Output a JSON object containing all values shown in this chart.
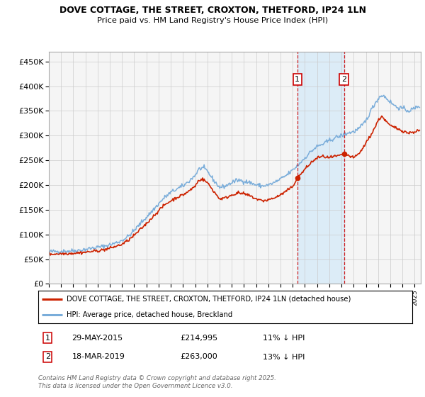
{
  "title": "DOVE COTTAGE, THE STREET, CROXTON, THETFORD, IP24 1LN",
  "subtitle": "Price paid vs. HM Land Registry's House Price Index (HPI)",
  "ylim": [
    0,
    470000
  ],
  "yticks": [
    0,
    50000,
    100000,
    150000,
    200000,
    250000,
    300000,
    350000,
    400000,
    450000
  ],
  "ytick_labels": [
    "£0",
    "£50K",
    "£100K",
    "£150K",
    "£200K",
    "£250K",
    "£300K",
    "£350K",
    "£400K",
    "£450K"
  ],
  "xlim_start": 1995.0,
  "xlim_end": 2025.5,
  "legend_line1": "DOVE COTTAGE, THE STREET, CROXTON, THETFORD, IP24 1LN (detached house)",
  "legend_line2": "HPI: Average price, detached house, Breckland",
  "sale1_date": "29-MAY-2015",
  "sale1_price": "£214,995",
  "sale1_hpi": "11% ↓ HPI",
  "sale1_x": 2015.38,
  "sale1_y": 214995,
  "sale2_date": "18-MAR-2019",
  "sale2_price": "£263,000",
  "sale2_hpi": "13% ↓ HPI",
  "sale2_x": 2019.21,
  "sale2_y": 263000,
  "footer": "Contains HM Land Registry data © Crown copyright and database right 2025.\nThis data is licensed under the Open Government Licence v3.0.",
  "line_color_red": "#cc2200",
  "line_color_blue": "#7aadda",
  "shade_color": "#d6eaf8",
  "grid_color": "#cccccc",
  "background_color": "#f5f5f5",
  "hpi_anchors": [
    [
      1995.0,
      65000
    ],
    [
      1995.5,
      65500
    ],
    [
      1996.0,
      66000
    ],
    [
      1996.5,
      66500
    ],
    [
      1997.0,
      67000
    ],
    [
      1997.5,
      68000
    ],
    [
      1998.0,
      70000
    ],
    [
      1998.5,
      72000
    ],
    [
      1999.0,
      74000
    ],
    [
      1999.5,
      76000
    ],
    [
      2000.0,
      79000
    ],
    [
      2000.5,
      83000
    ],
    [
      2001.0,
      88000
    ],
    [
      2001.5,
      96000
    ],
    [
      2002.0,
      108000
    ],
    [
      2002.5,
      122000
    ],
    [
      2003.0,
      135000
    ],
    [
      2003.5,
      148000
    ],
    [
      2004.0,
      162000
    ],
    [
      2004.5,
      175000
    ],
    [
      2005.0,
      185000
    ],
    [
      2005.5,
      192000
    ],
    [
      2006.0,
      198000
    ],
    [
      2006.5,
      208000
    ],
    [
      2007.0,
      220000
    ],
    [
      2007.3,
      232000
    ],
    [
      2007.6,
      235000
    ],
    [
      2008.0,
      228000
    ],
    [
      2008.5,
      210000
    ],
    [
      2009.0,
      195000
    ],
    [
      2009.5,
      198000
    ],
    [
      2010.0,
      205000
    ],
    [
      2010.5,
      210000
    ],
    [
      2011.0,
      208000
    ],
    [
      2011.5,
      205000
    ],
    [
      2012.0,
      200000
    ],
    [
      2012.5,
      198000
    ],
    [
      2013.0,
      200000
    ],
    [
      2013.5,
      205000
    ],
    [
      2014.0,
      212000
    ],
    [
      2014.5,
      220000
    ],
    [
      2015.0,
      230000
    ],
    [
      2015.5,
      242000
    ],
    [
      2016.0,
      255000
    ],
    [
      2016.5,
      268000
    ],
    [
      2017.0,
      278000
    ],
    [
      2017.5,
      283000
    ],
    [
      2018.0,
      290000
    ],
    [
      2018.5,
      296000
    ],
    [
      2019.0,
      300000
    ],
    [
      2019.5,
      305000
    ],
    [
      2020.0,
      308000
    ],
    [
      2020.5,
      315000
    ],
    [
      2021.0,
      330000
    ],
    [
      2021.5,
      355000
    ],
    [
      2022.0,
      375000
    ],
    [
      2022.3,
      382000
    ],
    [
      2022.6,
      378000
    ],
    [
      2023.0,
      368000
    ],
    [
      2023.5,
      358000
    ],
    [
      2024.0,
      355000
    ],
    [
      2024.5,
      350000
    ],
    [
      2025.0,
      355000
    ],
    [
      2025.3,
      360000
    ]
  ],
  "red_anchors": [
    [
      1995.0,
      60000
    ],
    [
      1995.5,
      60500
    ],
    [
      1996.0,
      61000
    ],
    [
      1996.5,
      61500
    ],
    [
      1997.0,
      62000
    ],
    [
      1997.5,
      63000
    ],
    [
      1998.0,
      64000
    ],
    [
      1998.5,
      65500
    ],
    [
      1999.0,
      67000
    ],
    [
      1999.5,
      69000
    ],
    [
      2000.0,
      72000
    ],
    [
      2000.5,
      76000
    ],
    [
      2001.0,
      80000
    ],
    [
      2001.5,
      88000
    ],
    [
      2002.0,
      98000
    ],
    [
      2002.5,
      110000
    ],
    [
      2003.0,
      122000
    ],
    [
      2003.5,
      135000
    ],
    [
      2004.0,
      148000
    ],
    [
      2004.5,
      160000
    ],
    [
      2005.0,
      168000
    ],
    [
      2005.5,
      175000
    ],
    [
      2006.0,
      180000
    ],
    [
      2006.5,
      188000
    ],
    [
      2007.0,
      198000
    ],
    [
      2007.3,
      210000
    ],
    [
      2007.6,
      212000
    ],
    [
      2008.0,
      205000
    ],
    [
      2008.5,
      188000
    ],
    [
      2009.0,
      172000
    ],
    [
      2009.5,
      174000
    ],
    [
      2010.0,
      180000
    ],
    [
      2010.5,
      184000
    ],
    [
      2011.0,
      182000
    ],
    [
      2011.5,
      178000
    ],
    [
      2012.0,
      172000
    ],
    [
      2012.5,
      168000
    ],
    [
      2013.0,
      170000
    ],
    [
      2013.5,
      174000
    ],
    [
      2014.0,
      180000
    ],
    [
      2014.5,
      188000
    ],
    [
      2015.0,
      197000
    ],
    [
      2015.38,
      214995
    ],
    [
      2015.6,
      220000
    ],
    [
      2016.0,
      232000
    ],
    [
      2016.5,
      245000
    ],
    [
      2017.0,
      255000
    ],
    [
      2017.5,
      258000
    ],
    [
      2018.0,
      255000
    ],
    [
      2018.5,
      258000
    ],
    [
      2019.0,
      260000
    ],
    [
      2019.21,
      263000
    ],
    [
      2019.5,
      260000
    ],
    [
      2020.0,
      255000
    ],
    [
      2020.5,
      265000
    ],
    [
      2021.0,
      285000
    ],
    [
      2021.5,
      305000
    ],
    [
      2022.0,
      330000
    ],
    [
      2022.3,
      340000
    ],
    [
      2022.6,
      330000
    ],
    [
      2023.0,
      320000
    ],
    [
      2023.5,
      315000
    ],
    [
      2024.0,
      310000
    ],
    [
      2024.5,
      305000
    ],
    [
      2025.0,
      308000
    ],
    [
      2025.3,
      310000
    ]
  ]
}
